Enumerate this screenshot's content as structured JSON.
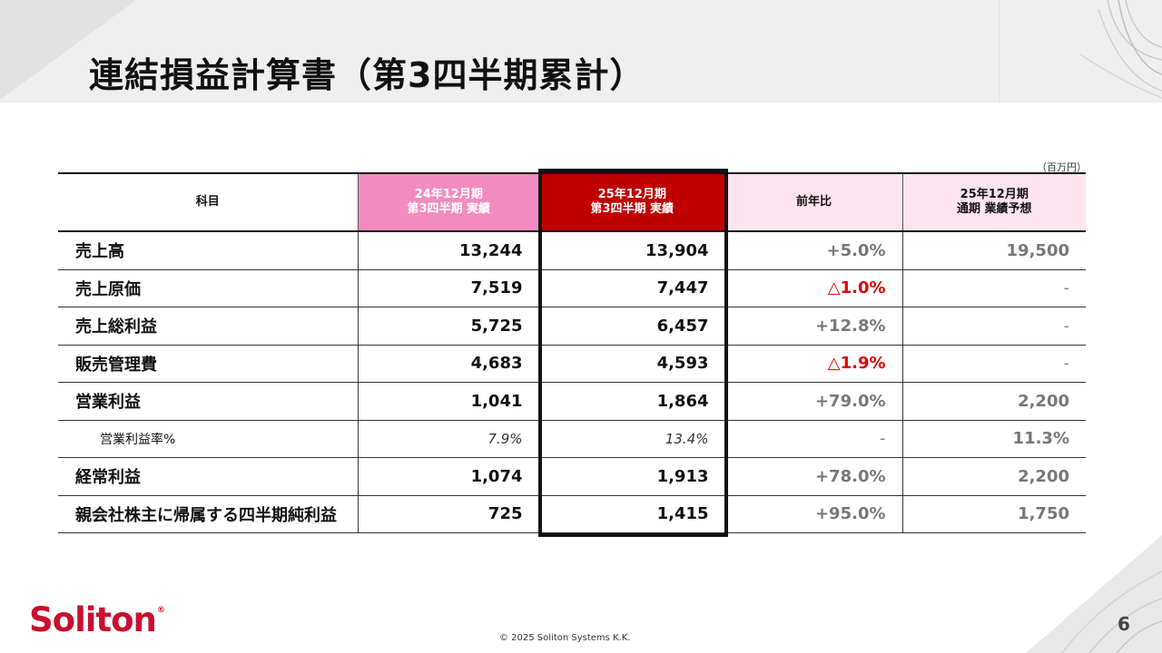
{
  "title": "連結損益計算書（第3四半期累計）",
  "unit": "（百万円）",
  "table": {
    "headers": {
      "subject": "科目",
      "prev_line1": "24年12月期",
      "prev_line2": "第3四半期 実績",
      "cur_line1": "25年12月期",
      "cur_line2": "第3四半期 実績",
      "yoy": "前年比",
      "forecast_line1": "25年12月期",
      "forecast_line2": "通期 業績予想"
    },
    "rows": [
      {
        "subject": "売上高",
        "prev": "13,244",
        "cur": "13,904",
        "yoy": "+5.0%",
        "forecast": "19,500"
      },
      {
        "subject": "売上原価",
        "prev": "7,519",
        "cur": "7,447",
        "yoy": "△1.0%",
        "forecast": "-"
      },
      {
        "subject": "売上総利益",
        "prev": "5,725",
        "cur": "6,457",
        "yoy": "+12.8%",
        "forecast": "-"
      },
      {
        "subject": "販売管理費",
        "prev": "4,683",
        "cur": "4,593",
        "yoy": "△1.9%",
        "forecast": "-"
      },
      {
        "subject": "営業利益",
        "prev": "1,041",
        "cur": "1,864",
        "yoy": "+79.0%",
        "forecast": "2,200"
      },
      {
        "subject": "営業利益率%",
        "prev": "7.9%",
        "cur": "13.4%",
        "yoy": "-",
        "forecast": "11.3%"
      },
      {
        "subject": "経常利益",
        "prev": "1,074",
        "cur": "1,913",
        "yoy": "+78.0%",
        "forecast": "2,200"
      },
      {
        "subject": "親会社株主に帰属する四半期純利益",
        "prev": "725",
        "cur": "1,415",
        "yoy": "+95.0%",
        "forecast": "1,750"
      }
    ]
  },
  "footer": {
    "logo": "Soliton",
    "logo_mark": "®",
    "copyright": "© 2025 Soliton Systems K.K.",
    "page": "6"
  },
  "colors": {
    "prev_header": "#f28cc0",
    "cur_header": "#c00000",
    "light_header": "#fde4ef",
    "negative": "#e00000",
    "brand": "#c8102e"
  }
}
